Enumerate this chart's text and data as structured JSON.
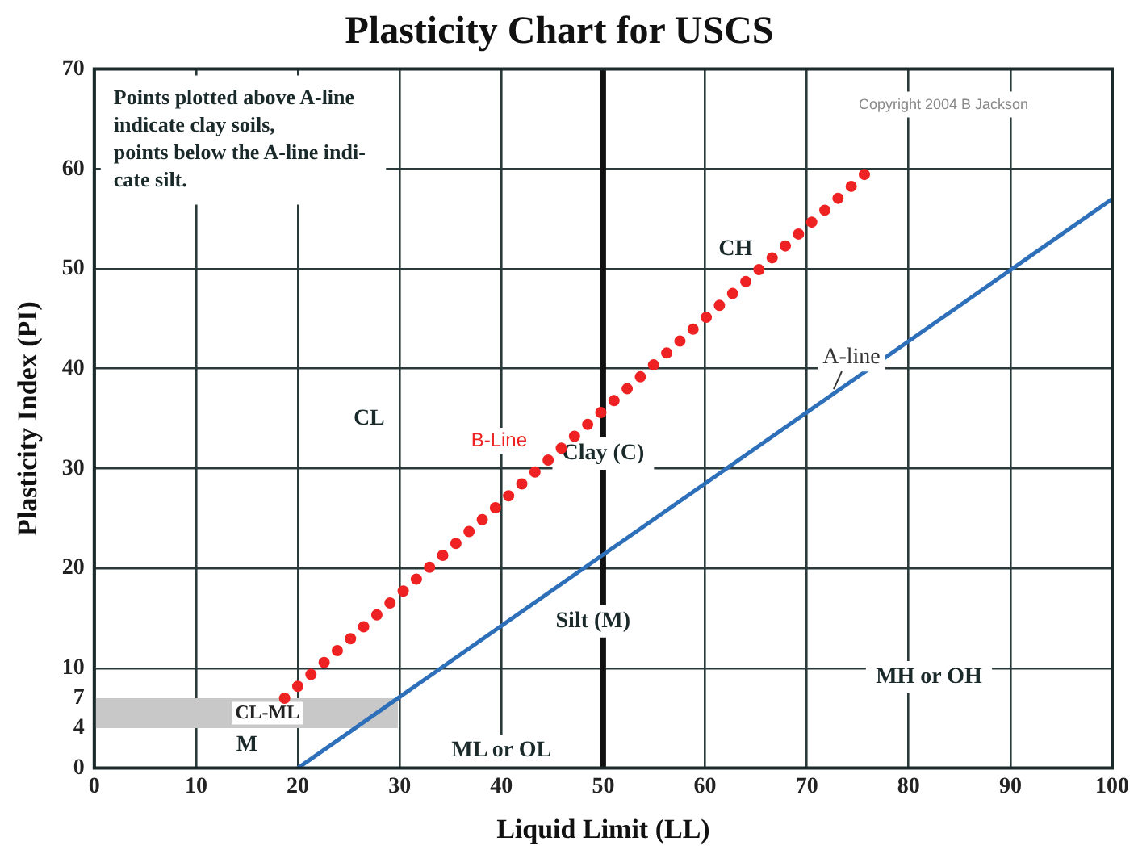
{
  "chart_data": {
    "type": "line",
    "title": "Plasticity Chart for USCS",
    "xlabel": "Liquid Limit (LL)",
    "ylabel": "Plasticity Index (PI)",
    "series": [
      {
        "name": "A-line",
        "color": "#2e6fba",
        "x": [
          20,
          100
        ],
        "values": [
          0,
          57
        ],
        "line_style": "solid"
      },
      {
        "name": "B-Line",
        "color": "#ee2222",
        "x": [
          18.7,
          76.8
        ],
        "values": [
          7,
          60.5
        ],
        "line_style": "dotted"
      }
    ],
    "xlim": [
      0,
      100
    ],
    "xticks": [
      0,
      10,
      20,
      30,
      40,
      50,
      60,
      70,
      80,
      90,
      100
    ],
    "ylim": [
      0,
      70
    ],
    "yticks": [
      0,
      4,
      7,
      10,
      20,
      30,
      40,
      50,
      60,
      70
    ],
    "grid": true,
    "legend": false,
    "marker": "none",
    "ref_lines": [
      {
        "axis": "x",
        "value": 50,
        "label": null,
        "color": "#111111"
      }
    ],
    "bands": [
      {
        "axis": "y",
        "from": 4,
        "to": 7,
        "label": "CL-ML",
        "color": "#c8c8c8"
      }
    ],
    "annotations": [
      "Points plotted above A-line\nindicate clay soils,\npoints below the A-line indi-\ncate silt.",
      "Copyright 2004 B Jackson",
      {
        "text": "CL",
        "x": 27,
        "y": 35
      },
      {
        "text": "CH",
        "x": 63,
        "y": 52
      },
      "Clay (C)",
      "Silt (M)",
      "MH or OH",
      "ML or OL",
      {
        "text": "M",
        "x": 15,
        "y": 2.3
      }
    ]
  }
}
